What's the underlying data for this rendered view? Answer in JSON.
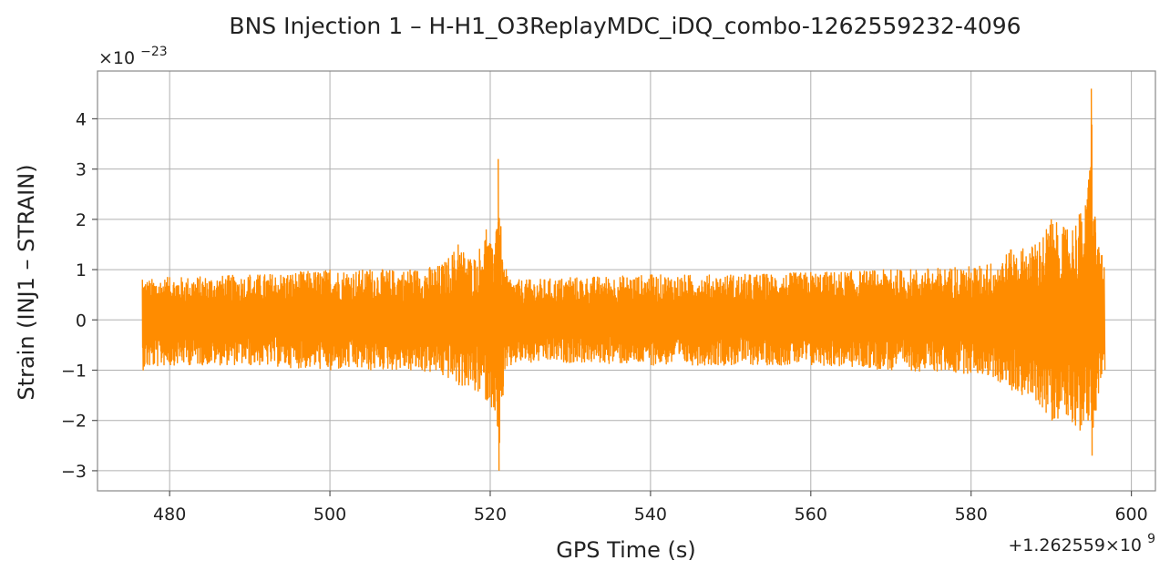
{
  "chart_data": {
    "type": "line",
    "title": "BNS Injection 1 – H-H1_O3ReplayMDC_iDQ_combo-1262559232-4096",
    "xlabel": "GPS Time (s)",
    "ylabel": "Strain (INJ1 – STRAIN)",
    "x_offset_label": "+1.262559×10",
    "x_offset_exponent": "9",
    "y_multiplier_label": "×10",
    "y_multiplier_exponent": "−23",
    "xlim": [
      471,
      603
    ],
    "ylim": [
      -3.4,
      4.95
    ],
    "x_ticks": [
      480,
      500,
      520,
      540,
      560,
      580,
      600
    ],
    "x_tick_labels": [
      "480",
      "500",
      "520",
      "540",
      "560",
      "580",
      "600"
    ],
    "y_ticks": [
      -3,
      -2,
      -1,
      0,
      1,
      2,
      3,
      4
    ],
    "y_tick_labels": [
      "−3",
      "−2",
      "−1",
      "0",
      "1",
      "2",
      "3",
      "4"
    ],
    "grid": true,
    "series": [
      {
        "color": "#ff8c00",
        "x_start": 476.6,
        "x_end": 596.6,
        "envelope": {
          "x": [
            476.6,
            480,
            490,
            500,
            505,
            510,
            514,
            516,
            518,
            519.5,
            520.5,
            521,
            521.5,
            522.5,
            525,
            530,
            540,
            550,
            560,
            570,
            578,
            582,
            585,
            588,
            590,
            592,
            593.5,
            594.5,
            595,
            595.5,
            596.6
          ],
          "upper": [
            0.8,
            0.85,
            0.9,
            1.0,
            1.0,
            1.0,
            1.1,
            1.5,
            1.2,
            1.8,
            1.3,
            3.2,
            1.2,
            0.8,
            0.8,
            0.85,
            0.9,
            0.9,
            0.95,
            1.0,
            1.05,
            1.1,
            1.4,
            1.5,
            2.0,
            1.8,
            2.1,
            2.4,
            4.6,
            2.0,
            1.05
          ],
          "lower": [
            -1.0,
            -0.9,
            -0.9,
            -1.0,
            -1.0,
            -1.0,
            -1.1,
            -1.3,
            -1.4,
            -1.6,
            -1.8,
            -3.0,
            -1.5,
            -0.9,
            -0.85,
            -0.85,
            -0.9,
            -0.9,
            -0.9,
            -1.0,
            -1.05,
            -1.1,
            -1.4,
            -1.6,
            -2.0,
            -1.9,
            -2.2,
            -2.0,
            -2.7,
            -1.8,
            -1.0
          ]
        }
      }
    ]
  }
}
